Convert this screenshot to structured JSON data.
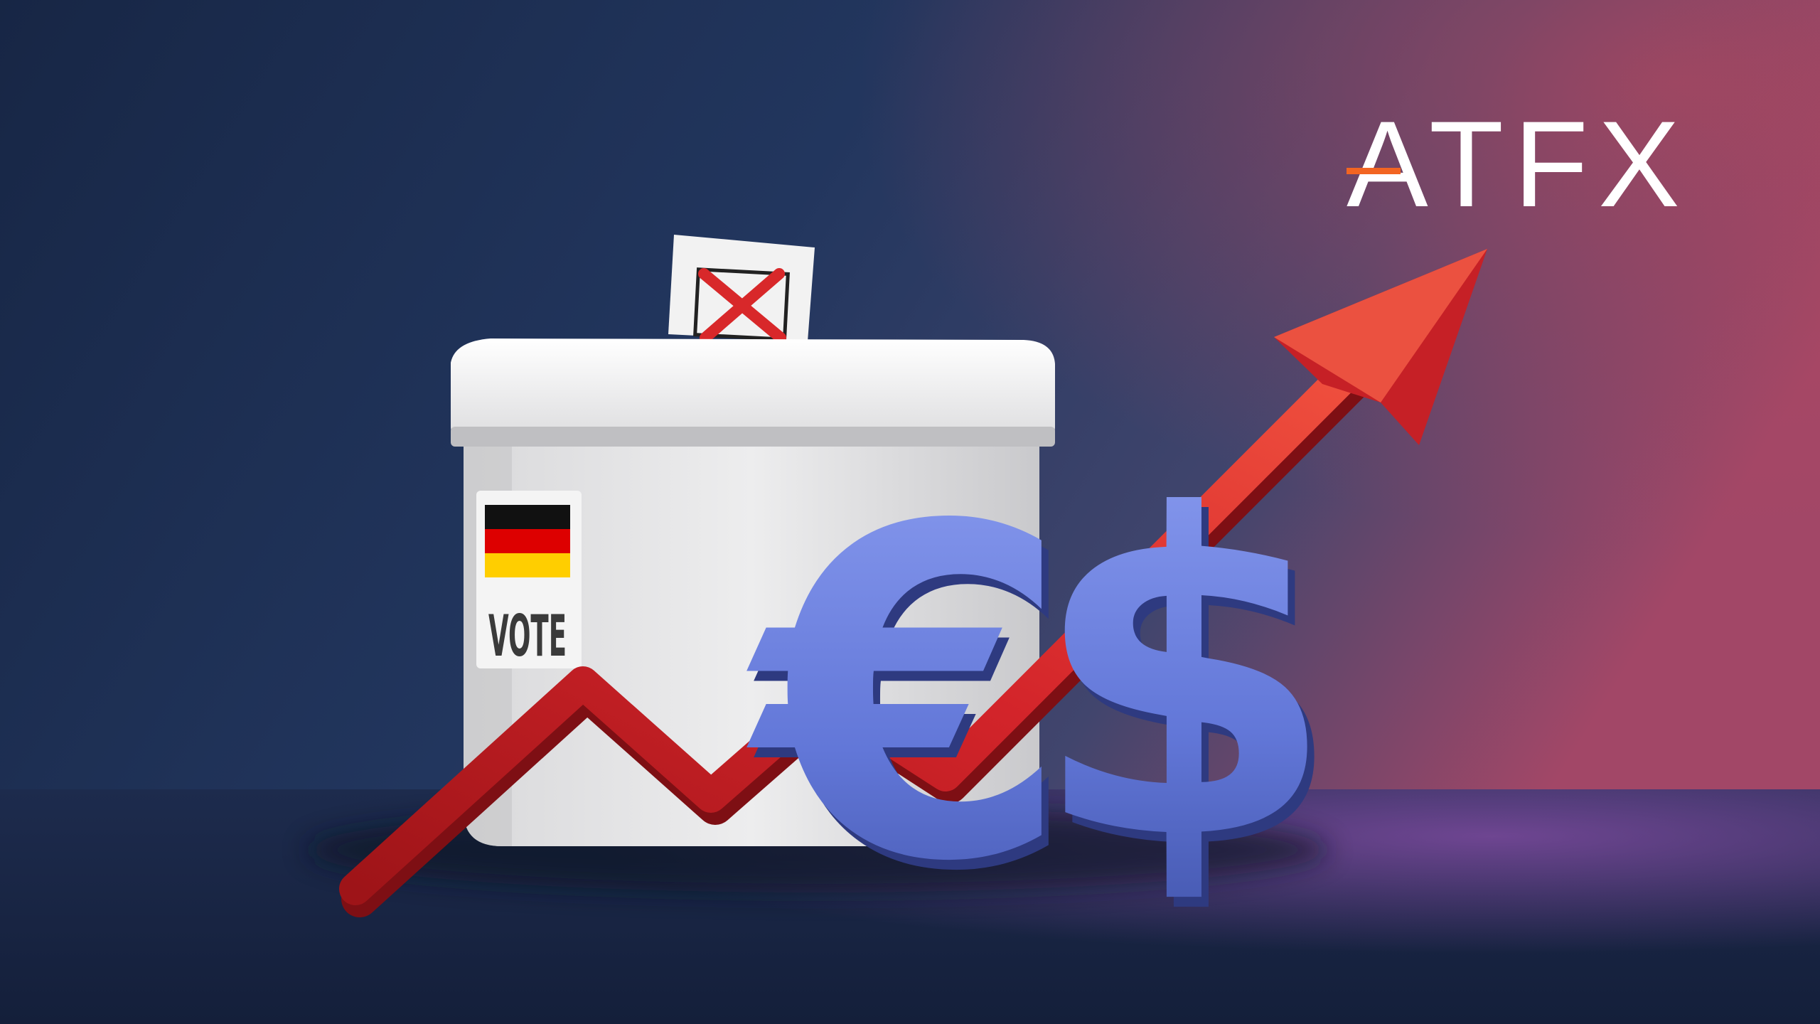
{
  "ballot_box": {
    "label": "VOTE",
    "flag_colors": [
      "#000000",
      "#dd0000",
      "#ffce00"
    ],
    "ballot_mark": "x-mark"
  },
  "symbols": {
    "euro": "€",
    "dollar": "$",
    "color": "#6a7fe0"
  },
  "trend_arrow": {
    "direction": "up",
    "color": "#d8282a"
  },
  "logo": {
    "text": "ATFX",
    "accent_color": "#f26522"
  },
  "colors": {
    "background_left": "#1a2b52",
    "background_right": "#a04a6c",
    "floor_glow": "#8a4aa8"
  }
}
